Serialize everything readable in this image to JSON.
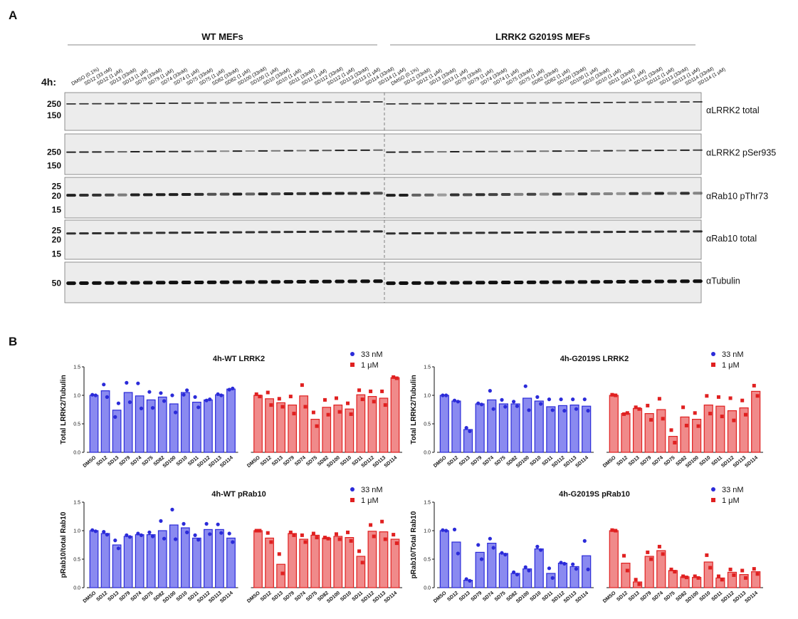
{
  "panels": {
    "A": "A",
    "B": "B"
  },
  "blot": {
    "timepoint": "4h:",
    "group_labels": [
      "WT MEFs",
      "LRRK2 G2019S MEFs"
    ],
    "lane_labels_wt": [
      "DMSO (0.1%)",
      "SD12 (33 nM)",
      "SD12 (1 μM)",
      "SD13 (33nM)",
      "SD13 (1 μM)",
      "SD79 (33nM)",
      "SD79 (1 μM)",
      "SD74 (33nM)",
      "SD74 (1 μM)",
      "SD75 (33nM)",
      "SD75 (1 μM)",
      "SD82 (33nM)",
      "SD82 (1 μM)",
      "SD100 (33nM)",
      "SD100 (1 μM)",
      "SD10 (33nM)",
      "SD10 (1 μM)",
      "SD11 (33nM)",
      "SD11 (1 μM)",
      "SD112 (33nM)",
      "SD112 (1 μM)",
      "SD113 (33nM)",
      "SD113 (1 μM)",
      "SD114 (33nM)",
      "SD114 (1 μM)"
    ],
    "lane_labels_g2019s": [
      "DMSO (0.1%)",
      "SD12 (33nM)",
      "SD12 (1 μM)",
      "SD13 (33nM)",
      "SD13 (1 μM)",
      "SD79 (33nM)",
      "SD79 (1 μM)",
      "SD74 (33nM)",
      "SD74 (1 μM)",
      "SD75 (33nM)",
      "SD75 (1 μM)",
      "SD82 (33nM)",
      "SD82 (1 μM)",
      "SD100 (33nM)",
      "SD100 (1 μM)",
      "SD10 (33nM)",
      "SD10 (1 μM)",
      "SD11 (33nM)",
      "Sd11 (1 μM)",
      "SD112 (33nM)",
      "SD112 (1 μM)",
      "SD113 (33nM)",
      "SD113 (1 μM)",
      "SD114 (33nM)",
      "SD114 (1 μM)"
    ],
    "strips": [
      {
        "antibody": "αLRRK2 total",
        "mw": [
          "250",
          "150"
        ]
      },
      {
        "antibody": "αLRRK2 pSer935",
        "mw": [
          "250",
          "150"
        ]
      },
      {
        "antibody": "αRab10 pThr73",
        "mw": [
          "25",
          "20",
          "15"
        ]
      },
      {
        "antibody": "αRab10 total",
        "mw": [
          "25",
          "20",
          "15"
        ]
      },
      {
        "antibody": "αTubulin",
        "mw": [
          "50"
        ]
      }
    ],
    "relative_band_intensity": {
      "LRRK2_total_wt": [
        0.8,
        0.8,
        0.8,
        0.8,
        0.8,
        0.8,
        0.8,
        0.8,
        0.8,
        0.8,
        0.8,
        0.8,
        0.8,
        0.8,
        0.8,
        0.8,
        0.8,
        0.8,
        0.8,
        0.8,
        0.8,
        0.8,
        0.8,
        0.8,
        0.8
      ],
      "LRRK2_total_g2019s": [
        0.8,
        0.8,
        0.8,
        0.8,
        0.8,
        0.8,
        0.8,
        0.8,
        0.8,
        0.8,
        0.8,
        0.8,
        0.8,
        0.8,
        0.8,
        0.8,
        0.8,
        0.8,
        0.8,
        0.8,
        0.8,
        0.8,
        0.8,
        0.8,
        0.8
      ],
      "pSer935_wt": [
        0.9,
        0.9,
        0.9,
        0.7,
        0.5,
        0.9,
        0.8,
        0.9,
        0.8,
        0.9,
        0.5,
        0.9,
        0.3,
        0.9,
        0.3,
        0.9,
        0.4,
        0.9,
        0.4,
        0.9,
        0.6,
        0.9,
        0.8,
        0.9,
        0.5
      ],
      "pSer935_g2019s": [
        0.9,
        0.9,
        0.9,
        0.6,
        0.4,
        0.9,
        0.6,
        0.9,
        0.5,
        0.9,
        0.4,
        0.9,
        0.4,
        0.9,
        0.4,
        0.9,
        0.4,
        0.9,
        0.4,
        0.9,
        0.8,
        0.9,
        0.5,
        0.9,
        0.7
      ],
      "pThr73_wt": [
        0.9,
        0.8,
        0.8,
        0.7,
        0.35,
        0.9,
        0.9,
        0.9,
        0.9,
        0.9,
        0.8,
        0.6,
        0.6,
        0.9,
        0.5,
        0.9,
        0.6,
        0.9,
        0.75,
        0.9,
        0.9,
        0.9,
        0.8,
        0.9,
        0.6
      ],
      "pThr73_g2019s": [
        0.9,
        0.9,
        0.5,
        0.5,
        0.15,
        0.8,
        0.6,
        0.8,
        0.7,
        0.7,
        0.3,
        0.7,
        0.2,
        0.8,
        0.2,
        0.8,
        0.35,
        0.3,
        0.2,
        0.8,
        0.3,
        0.9,
        0.3,
        0.8,
        0.3
      ],
      "Rab10_total_wt": [
        0.8,
        0.8,
        0.8,
        0.8,
        0.8,
        0.8,
        0.8,
        0.8,
        0.8,
        0.8,
        0.8,
        0.8,
        0.8,
        0.8,
        0.8,
        0.8,
        0.8,
        0.8,
        0.8,
        0.8,
        0.8,
        0.8,
        0.8,
        0.8,
        0.8
      ],
      "Rab10_total_g2019s": [
        0.8,
        0.8,
        0.8,
        0.8,
        0.8,
        0.8,
        0.8,
        0.8,
        0.8,
        0.8,
        0.8,
        0.8,
        0.8,
        0.8,
        0.8,
        0.8,
        0.8,
        0.8,
        0.8,
        0.8,
        0.8,
        0.8,
        0.8,
        0.8,
        0.8
      ],
      "Tubulin_wt": [
        1,
        1,
        1,
        1,
        1,
        1,
        1,
        1,
        1,
        1,
        1,
        1,
        1,
        1,
        1,
        1,
        1,
        1,
        1,
        1,
        1,
        1,
        1,
        1,
        1
      ],
      "Tubulin_g2019s": [
        1,
        1,
        1,
        1,
        1,
        1,
        1,
        1,
        1,
        1,
        1,
        1,
        1,
        1,
        1,
        1,
        1,
        1,
        1,
        1,
        1,
        1,
        1,
        1,
        1
      ]
    }
  },
  "chart_data": [
    {
      "type": "bar",
      "title": "4h-WT LRRK2",
      "ylabel": "Total LRRK2/Tubulin",
      "ylim": [
        0,
        1.5
      ],
      "yticks": [
        "0.0",
        "0.5",
        "1.0",
        "1.5"
      ],
      "categories": [
        "DMSO",
        "SD12",
        "SD13",
        "SD79",
        "SD74",
        "SD75",
        "SD82",
        "SD100",
        "SD10",
        "SD11",
        "SD112",
        "SD113",
        "SD114"
      ],
      "legend": [
        "33 nM",
        "1 μM"
      ],
      "colors": {
        "33 nM": "#2b2bd9",
        "1 μM": "#e02020"
      },
      "series": [
        {
          "name": "33 nM",
          "values": [
            1.0,
            1.08,
            0.74,
            1.05,
            0.99,
            0.92,
            0.97,
            0.85,
            1.05,
            0.88,
            0.92,
            1.01,
            1.11
          ],
          "points": [
            [
              1.01,
              1.0
            ],
            [
              1.19,
              0.97
            ],
            [
              0.62,
              0.86
            ],
            [
              1.22,
              0.88
            ],
            [
              1.21,
              0.77
            ],
            [
              1.06,
              0.78
            ],
            [
              1.04,
              0.9
            ],
            [
              1.0,
              0.7
            ],
            [
              1.01,
              1.09
            ],
            [
              0.97,
              0.79
            ],
            [
              0.91,
              0.93
            ],
            [
              1.02,
              1.0
            ],
            [
              1.1,
              1.12
            ]
          ]
        },
        {
          "name": "1 μM",
          "values": [
            1.0,
            0.94,
            0.87,
            0.83,
            0.99,
            0.58,
            0.79,
            0.83,
            0.76,
            1.01,
            0.98,
            0.95,
            1.31
          ],
          "points": [
            [
              1.02,
              0.98
            ],
            [
              1.05,
              0.83
            ],
            [
              0.94,
              0.8
            ],
            [
              0.98,
              0.68
            ],
            [
              1.18,
              0.8
            ],
            [
              0.7,
              0.46
            ],
            [
              0.92,
              0.66
            ],
            [
              0.95,
              0.71
            ],
            [
              0.86,
              0.67
            ],
            [
              1.09,
              0.93
            ],
            [
              1.07,
              0.89
            ],
            [
              1.07,
              0.83
            ],
            [
              1.32,
              1.3
            ]
          ]
        }
      ]
    },
    {
      "type": "bar",
      "title": "4h-G2019S LRRK2",
      "ylabel": "Total LRRK2/Tubulin",
      "ylim": [
        0,
        1.5
      ],
      "yticks": [
        "0.0",
        "0.5",
        "1.0",
        "1.5"
      ],
      "categories": [
        "DMSO",
        "SD12",
        "SD13",
        "SD79",
        "SD74",
        "SD75",
        "SD82",
        "SD100",
        "SD10",
        "SD11",
        "SD112",
        "SD113",
        "SD114"
      ],
      "legend": [
        "33 nM",
        "1 μM"
      ],
      "colors": {
        "33 nM": "#2b2bd9",
        "1 μM": "#e02020"
      },
      "series": [
        {
          "name": "33 nM",
          "values": [
            1.0,
            0.9,
            0.4,
            0.85,
            0.92,
            0.85,
            0.85,
            0.95,
            0.9,
            0.8,
            0.82,
            0.83,
            0.81
          ],
          "points": [
            [
              1.0,
              1.0
            ],
            [
              0.91,
              0.89
            ],
            [
              0.43,
              0.37
            ],
            [
              0.86,
              0.84
            ],
            [
              1.08,
              0.76
            ],
            [
              0.92,
              0.8
            ],
            [
              0.89,
              0.81
            ],
            [
              1.16,
              0.74
            ],
            [
              0.97,
              0.85
            ],
            [
              0.93,
              0.74
            ],
            [
              0.93,
              0.73
            ],
            [
              0.93,
              0.76
            ],
            [
              0.93,
              0.73
            ]
          ]
        },
        {
          "name": "1 μM",
          "values": [
            1.0,
            0.68,
            0.77,
            0.68,
            0.75,
            0.28,
            0.62,
            0.58,
            0.83,
            0.81,
            0.73,
            0.78,
            1.07
          ],
          "points": [
            [
              1.01,
              1.0
            ],
            [
              0.67,
              0.69
            ],
            [
              0.79,
              0.76
            ],
            [
              0.82,
              0.57
            ],
            [
              0.94,
              0.59
            ],
            [
              0.39,
              0.17
            ],
            [
              0.79,
              0.47
            ],
            [
              0.69,
              0.46
            ],
            [
              0.99,
              0.68
            ],
            [
              0.97,
              0.63
            ],
            [
              0.95,
              0.56
            ],
            [
              0.91,
              0.66
            ],
            [
              1.17,
              0.99
            ]
          ]
        }
      ]
    },
    {
      "type": "bar",
      "title": "4h-WT pRab10",
      "ylabel": "pRab10/total Rab10",
      "ylim": [
        0,
        1.5
      ],
      "yticks": [
        "0.0",
        "0.5",
        "1.0",
        "1.5"
      ],
      "categories": [
        "DMSO",
        "SD12",
        "SD13",
        "SD79",
        "SD74",
        "SD75",
        "SD82",
        "SD100",
        "SD10",
        "SD11",
        "SD112",
        "SD113",
        "SD114"
      ],
      "legend": [
        "33 nM",
        "1 μM"
      ],
      "colors": {
        "33 nM": "#2b2bd9",
        "1 μM": "#e02020"
      },
      "series": [
        {
          "name": "33 nM",
          "values": [
            1.0,
            0.95,
            0.75,
            0.9,
            0.93,
            0.93,
            1.0,
            1.1,
            1.05,
            0.87,
            1.02,
            1.02,
            0.87
          ],
          "points": [
            [
              1.01,
              0.99
            ],
            [
              0.98,
              0.93
            ],
            [
              0.83,
              0.69
            ],
            [
              0.92,
              0.89
            ],
            [
              0.95,
              0.92
            ],
            [
              0.97,
              0.9
            ],
            [
              1.17,
              0.86
            ],
            [
              1.37,
              0.85
            ],
            [
              1.12,
              0.97
            ],
            [
              0.92,
              0.84
            ],
            [
              1.12,
              0.94
            ],
            [
              1.11,
              0.96
            ],
            [
              0.95,
              0.8
            ]
          ]
        },
        {
          "name": "1 μM",
          "values": [
            1.0,
            0.87,
            0.41,
            0.95,
            0.85,
            0.92,
            0.87,
            0.9,
            0.88,
            0.55,
            0.99,
            0.98,
            0.85
          ],
          "points": [
            [
              1.0,
              1.0
            ],
            [
              0.96,
              0.8
            ],
            [
              0.59,
              0.25
            ],
            [
              0.97,
              0.92
            ],
            [
              0.92,
              0.8
            ],
            [
              0.95,
              0.88
            ],
            [
              0.88,
              0.86
            ],
            [
              0.94,
              0.85
            ],
            [
              0.97,
              0.82
            ],
            [
              0.64,
              0.44
            ],
            [
              1.1,
              0.9
            ],
            [
              1.16,
              0.85
            ],
            [
              0.93,
              0.78
            ]
          ]
        }
      ]
    },
    {
      "type": "bar",
      "title": "4h-G2019S pRab10",
      "ylabel": "pRab10/Total Rab10",
      "ylim": [
        0,
        1.5
      ],
      "yticks": [
        "0.0",
        "0.5",
        "1.0",
        "1.5"
      ],
      "categories": [
        "DMSO",
        "SD12",
        "SD13",
        "SD79",
        "SD74",
        "SD75",
        "SD82",
        "SD100",
        "SD10",
        "SD11",
        "SD112",
        "SD113",
        "SD114"
      ],
      "legend": [
        "33 nM",
        "1 μM"
      ],
      "colors": {
        "33 nM": "#2b2bd9",
        "1 μM": "#e02020"
      },
      "series": [
        {
          "name": "33 nM",
          "values": [
            1.0,
            0.8,
            0.13,
            0.62,
            0.78,
            0.6,
            0.25,
            0.33,
            0.68,
            0.25,
            0.43,
            0.37,
            0.56
          ],
          "points": [
            [
              1.01,
              1.0
            ],
            [
              1.02,
              0.6
            ],
            [
              0.15,
              0.12
            ],
            [
              0.75,
              0.5
            ],
            [
              0.86,
              0.7
            ],
            [
              0.61,
              0.58
            ],
            [
              0.27,
              0.23
            ],
            [
              0.36,
              0.3
            ],
            [
              0.72,
              0.66
            ],
            [
              0.34,
              0.17
            ],
            [
              0.44,
              0.42
            ],
            [
              0.41,
              0.33
            ],
            [
              0.82,
              0.32
            ]
          ]
        },
        {
          "name": "1 μM",
          "values": [
            1.0,
            0.43,
            0.1,
            0.55,
            0.65,
            0.3,
            0.19,
            0.18,
            0.45,
            0.17,
            0.27,
            0.23,
            0.28
          ],
          "points": [
            [
              1.01,
              1.0
            ],
            [
              0.56,
              0.3
            ],
            [
              0.14,
              0.06
            ],
            [
              0.62,
              0.5
            ],
            [
              0.72,
              0.59
            ],
            [
              0.32,
              0.28
            ],
            [
              0.2,
              0.18
            ],
            [
              0.2,
              0.17
            ],
            [
              0.57,
              0.35
            ],
            [
              0.2,
              0.14
            ],
            [
              0.32,
              0.22
            ],
            [
              0.3,
              0.17
            ],
            [
              0.33,
              0.24
            ]
          ]
        }
      ]
    }
  ]
}
